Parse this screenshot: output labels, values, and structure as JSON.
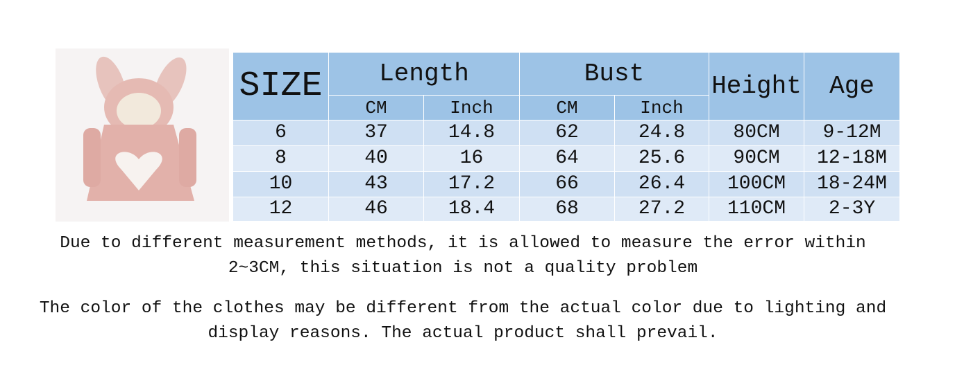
{
  "table": {
    "header": [
      "SIZE",
      "Length",
      "Bust",
      "Height",
      "Age"
    ],
    "subheader": [
      "CM",
      "Inch",
      "CM",
      "Inch"
    ],
    "rows": [
      [
        "6",
        "37",
        "14.8",
        "62",
        "24.8",
        "80CM",
        "9-12M"
      ],
      [
        "8",
        "40",
        "16",
        "64",
        "25.6",
        "90CM",
        "12-18M"
      ],
      [
        "10",
        "43",
        "17.2",
        "66",
        "26.4",
        "100CM",
        "18-24M"
      ],
      [
        "12",
        "46",
        "18.4",
        "68",
        "27.2",
        "110CM",
        "2-3Y"
      ]
    ]
  },
  "notes": [
    "Due to different measurement methods, it is allowed to measure the error within 2~3CM, this situation is not a quality problem",
    "The color of the clothes may be different from the actual color due to lighting and display reasons. The actual product shall prevail."
  ]
}
